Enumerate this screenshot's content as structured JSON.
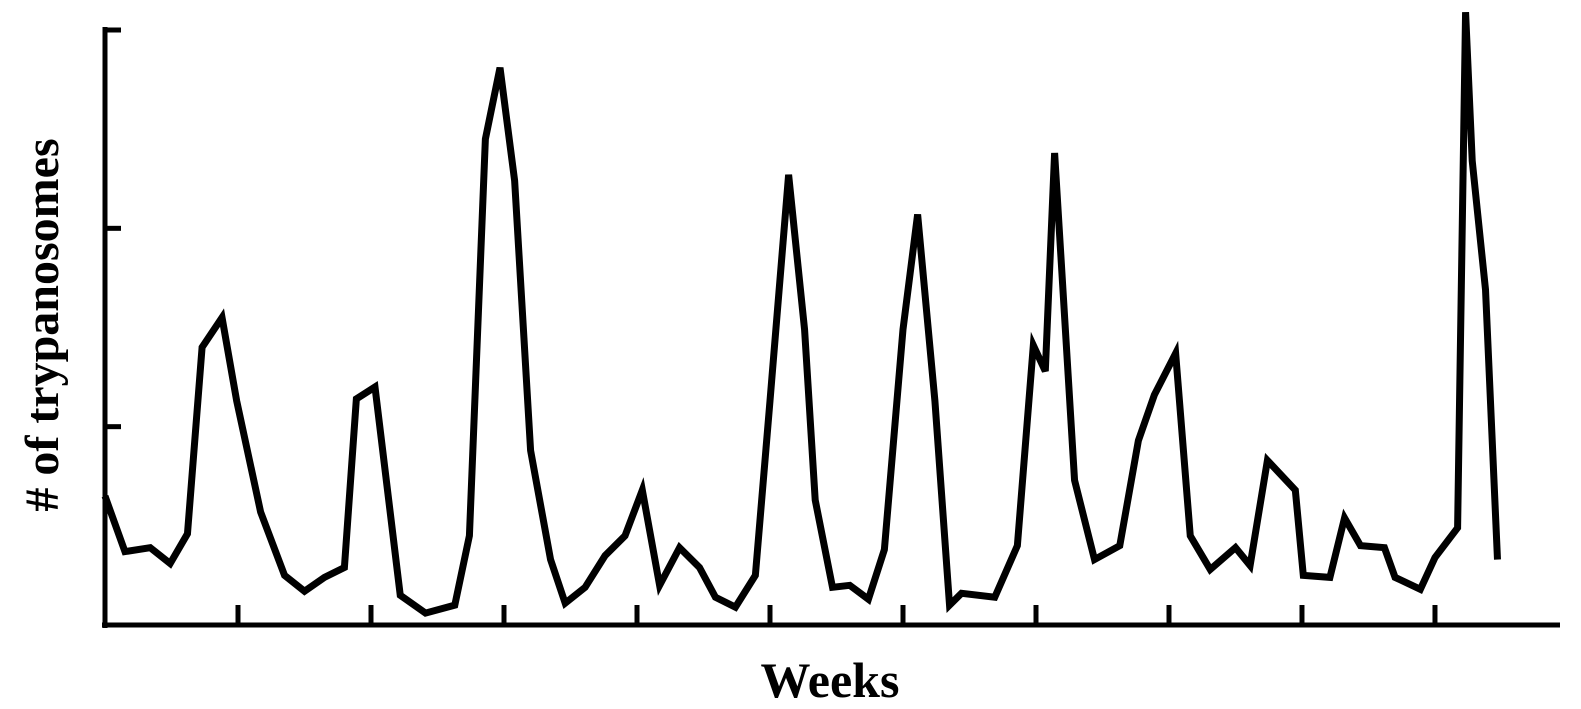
{
  "chart_data": {
    "type": "line",
    "x_label": "Weeks",
    "y_label": "# of trypanosomes",
    "x": [
      0.0,
      0.15,
      0.34,
      0.49,
      0.62,
      0.73,
      0.88,
      0.99,
      1.17,
      1.35,
      1.5,
      1.65,
      1.8,
      1.89,
      2.03,
      2.22,
      2.41,
      2.63,
      2.74,
      2.86,
      2.97,
      3.08,
      3.2,
      3.35,
      3.46,
      3.61,
      3.76,
      3.91,
      4.04,
      4.17,
      4.32,
      4.47,
      4.59,
      4.74,
      4.89,
      5.0,
      5.14,
      5.26,
      5.34,
      5.47,
      5.6,
      5.74,
      5.86,
      6.0,
      6.11,
      6.24,
      6.35,
      6.44,
      6.69,
      6.86,
      6.98,
      7.07,
      7.14,
      7.29,
      7.44,
      7.63,
      7.77,
      7.89,
      8.05,
      8.16,
      8.31,
      8.5,
      8.61,
      8.74,
      8.95,
      9.01,
      9.21,
      9.32,
      9.44,
      9.62,
      9.7,
      9.89,
      10.0,
      10.17,
      10.23,
      10.28,
      10.38,
      10.47
    ],
    "values": [
      0.65,
      0.37,
      0.39,
      0.31,
      0.46,
      1.4,
      1.55,
      1.13,
      0.57,
      0.25,
      0.17,
      0.24,
      0.29,
      1.14,
      1.2,
      0.15,
      0.06,
      0.1,
      0.45,
      2.45,
      2.81,
      2.24,
      0.88,
      0.33,
      0.11,
      0.19,
      0.35,
      0.45,
      0.68,
      0.2,
      0.39,
      0.29,
      0.14,
      0.09,
      0.25,
      1.13,
      2.27,
      1.49,
      0.63,
      0.19,
      0.2,
      0.13,
      0.38,
      1.49,
      2.07,
      1.13,
      0.1,
      0.16,
      0.14,
      0.4,
      1.41,
      1.28,
      2.38,
      0.73,
      0.33,
      0.4,
      0.93,
      1.16,
      1.37,
      0.45,
      0.28,
      0.39,
      0.3,
      0.83,
      0.68,
      0.25,
      0.24,
      0.54,
      0.4,
      0.39,
      0.24,
      0.18,
      0.34,
      0.49,
      3.09,
      2.34,
      1.69,
      0.33
    ],
    "color": "#000000",
    "xlim": [
      0,
      10.94
    ],
    "xticks": [
      1,
      2,
      3,
      4,
      5,
      6,
      7,
      8,
      9,
      10
    ],
    "ylim": [
      0,
      3
    ],
    "yticks": [
      1,
      2,
      3
    ]
  }
}
